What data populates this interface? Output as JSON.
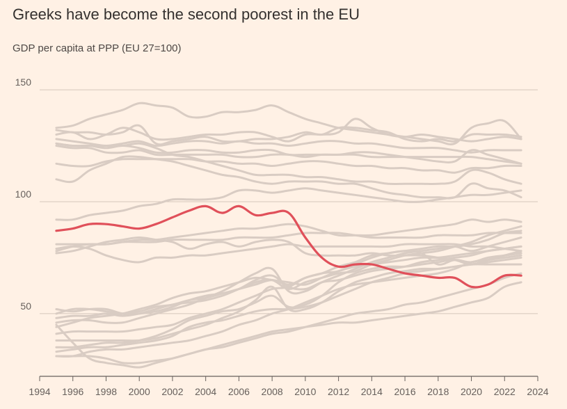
{
  "chart_data": {
    "type": "line",
    "title": "Greeks have become the second poorest in the EU",
    "subtitle": "GDP per capita at PPP (EU 27=100)",
    "xlabel": "",
    "ylabel": "",
    "xlim": [
      1994,
      2024
    ],
    "ylim": [
      22,
      155
    ],
    "x_ticks": [
      1994,
      1996,
      1998,
      2000,
      2002,
      2004,
      2006,
      2008,
      2010,
      2012,
      2014,
      2016,
      2018,
      2020,
      2022,
      2024
    ],
    "y_ticks": [
      50,
      100,
      150
    ],
    "grid": true,
    "legend": "none",
    "colors": {
      "background": "#fff1e5",
      "other_countries": "#d9ccc3",
      "highlight": "#e0505a",
      "gridline": "#d4c6bb",
      "axis": "#66605c"
    },
    "x": [
      1995,
      1996,
      1997,
      1998,
      1999,
      2000,
      2001,
      2002,
      2003,
      2004,
      2005,
      2006,
      2007,
      2008,
      2009,
      2010,
      2011,
      2012,
      2013,
      2014,
      2015,
      2016,
      2017,
      2018,
      2019,
      2020,
      2021,
      2022,
      2023
    ],
    "highlight_series": {
      "values": [
        87,
        88,
        90,
        90,
        89,
        88,
        90,
        93,
        96,
        98,
        95,
        98,
        94,
        95,
        95,
        84,
        75,
        71,
        72,
        72,
        70,
        68,
        67,
        66,
        66,
        62,
        63,
        67,
        67
      ]
    },
    "background_series": [
      {
        "values": [
          133,
          134,
          137,
          139,
          141,
          144,
          143,
          142,
          138,
          138,
          140,
          140,
          141,
          143,
          140,
          137,
          135,
          133,
          132,
          131,
          130,
          129,
          128,
          127,
          126,
          133,
          135,
          136,
          128
        ]
      },
      {
        "values": [
          132,
          131,
          131,
          130,
          131,
          134,
          126,
          127,
          128,
          129,
          127,
          127,
          128,
          128,
          129,
          131,
          130,
          133,
          133,
          132,
          131,
          128,
          127,
          128,
          127,
          130,
          130,
          130,
          129
        ]
      },
      {
        "values": [
          130,
          131,
          128,
          130,
          133,
          131,
          128,
          128,
          129,
          130,
          130,
          131,
          131,
          129,
          127,
          130,
          130,
          131,
          137,
          133,
          130,
          129,
          130,
          129,
          128,
          127,
          128,
          129,
          128
        ]
      },
      {
        "values": [
          128,
          127,
          126,
          125,
          126,
          127,
          125,
          126,
          127,
          127,
          126,
          127,
          126,
          126,
          125,
          126,
          127,
          127,
          126,
          126,
          125,
          124,
          124,
          124,
          123,
          122,
          123,
          123,
          123
        ]
      },
      {
        "values": [
          126,
          125,
          125,
          124,
          125,
          124,
          122,
          122,
          123,
          123,
          122,
          122,
          123,
          123,
          121,
          121,
          121,
          121,
          121,
          120,
          120,
          120,
          120,
          120,
          120,
          120,
          119,
          118,
          117
        ]
      },
      {
        "values": [
          125,
          124,
          124,
          122,
          122,
          123,
          121,
          121,
          121,
          121,
          121,
          120,
          120,
          121,
          121,
          120,
          121,
          121,
          122,
          122,
          121,
          120,
          119,
          118,
          118,
          123,
          121,
          119,
          117
        ]
      },
      {
        "values": [
          117,
          116,
          116,
          118,
          119,
          119,
          119,
          119,
          119,
          118,
          118,
          117,
          117,
          116,
          117,
          118,
          118,
          117,
          116,
          116,
          115,
          115,
          114,
          114,
          113,
          115,
          115,
          116,
          116
        ]
      },
      {
        "values": [
          110,
          109,
          114,
          117,
          120,
          120,
          119,
          118,
          116,
          114,
          112,
          111,
          109,
          108,
          109,
          109,
          109,
          108,
          108,
          106,
          104,
          103,
          102,
          102,
          102,
          108,
          106,
          105,
          102
        ]
      },
      {
        "values": [
          126,
          125,
          125,
          125,
          125,
          126,
          124,
          121,
          120,
          118,
          116,
          114,
          112,
          112,
          112,
          111,
          111,
          110,
          109,
          109,
          108,
          108,
          108,
          108,
          109,
          114,
          113,
          110,
          108
        ]
      },
      {
        "values": [
          92,
          92,
          94,
          95,
          96,
          98,
          99,
          101,
          101,
          101,
          102,
          105,
          105,
          104,
          105,
          106,
          105,
          104,
          103,
          102,
          101,
          100,
          100,
          101,
          102,
          103,
          103,
          104,
          105
        ]
      },
      {
        "values": [
          81,
          81,
          81,
          81,
          82,
          83,
          83,
          84,
          85,
          86,
          87,
          88,
          88,
          89,
          90,
          89,
          87,
          85,
          85,
          85,
          86,
          87,
          88,
          89,
          90,
          92,
          91,
          92,
          91
        ]
      },
      {
        "values": [
          78,
          80,
          81,
          81,
          82,
          82,
          82,
          83,
          83,
          83,
          83,
          84,
          84,
          84,
          85,
          86,
          86,
          86,
          85,
          84,
          84,
          84,
          84,
          85,
          85,
          85,
          86,
          86,
          86
        ]
      },
      {
        "values": [
          79,
          80,
          79,
          76,
          74,
          73,
          75,
          75,
          76,
          76,
          77,
          78,
          79,
          80,
          81,
          80,
          80,
          80,
          80,
          80,
          80,
          81,
          81,
          81,
          81,
          80,
          80,
          79,
          78
        ]
      },
      {
        "values": [
          77,
          78,
          80,
          82,
          83,
          84,
          83,
          82,
          79,
          81,
          82,
          80,
          82,
          83,
          82,
          77,
          76,
          76,
          76,
          77,
          76,
          76,
          76,
          75,
          74,
          72,
          74,
          76,
          77
        ]
      },
      {
        "values": [
          52,
          51,
          52,
          52,
          50,
          50,
          51,
          53,
          56,
          58,
          59,
          61,
          63,
          65,
          63,
          66,
          68,
          69,
          72,
          75,
          77,
          78,
          79,
          80,
          80,
          81,
          83,
          86,
          87
        ]
      },
      {
        "values": [
          48,
          49,
          49,
          50,
          49,
          50,
          52,
          54,
          55,
          56,
          58,
          61,
          64,
          65,
          61,
          64,
          66,
          68,
          69,
          72,
          74,
          76,
          77,
          78,
          80,
          82,
          85,
          87,
          89
        ]
      },
      {
        "values": [
          50,
          52,
          52,
          51,
          50,
          51,
          53,
          54,
          56,
          57,
          59,
          61,
          65,
          67,
          62,
          61,
          64,
          65,
          67,
          69,
          70,
          71,
          73,
          74,
          75,
          76,
          78,
          79,
          80
        ]
      },
      {
        "values": [
          46,
          47,
          47,
          46,
          46,
          48,
          50,
          52,
          54,
          57,
          60,
          64,
          68,
          70,
          60,
          60,
          64,
          67,
          70,
          73,
          75,
          77,
          78,
          79,
          80,
          78,
          80,
          82,
          84
        ]
      },
      {
        "values": [
          44,
          46,
          48,
          49,
          50,
          52,
          54,
          57,
          59,
          60,
          62,
          64,
          66,
          65,
          64,
          63,
          66,
          69,
          71,
          72,
          73,
          74,
          75,
          75,
          76,
          77,
          78,
          79,
          80
        ]
      },
      {
        "values": [
          41,
          42,
          42,
          42,
          42,
          43,
          44,
          45,
          48,
          50,
          52,
          55,
          58,
          61,
          62,
          66,
          68,
          71,
          73,
          76,
          77,
          78,
          77,
          72,
          74,
          73,
          75,
          76,
          77
        ]
      },
      {
        "values": [
          38,
          38,
          38,
          38,
          38,
          38,
          39,
          41,
          43,
          45,
          48,
          51,
          56,
          62,
          52,
          52,
          55,
          60,
          64,
          66,
          68,
          69,
          70,
          70,
          71,
          72,
          72,
          72,
          72
        ]
      },
      {
        "values": [
          35,
          35,
          36,
          37,
          37,
          38,
          40,
          43,
          47,
          49,
          51,
          52,
          55,
          58,
          53,
          54,
          58,
          64,
          68,
          70,
          71,
          71,
          72,
          73,
          74,
          72,
          74,
          76,
          78
        ]
      },
      {
        "values": [
          33,
          34,
          35,
          35,
          36,
          37,
          38,
          40,
          44,
          46,
          47,
          49,
          51,
          52,
          52,
          53,
          55,
          58,
          61,
          64,
          66,
          68,
          69,
          70,
          71,
          72,
          73,
          74,
          75
        ]
      },
      {
        "values": [
          31,
          31,
          33,
          34,
          34,
          35,
          36,
          37,
          38,
          40,
          42,
          45,
          47,
          50,
          52,
          55,
          58,
          61,
          63,
          64,
          65,
          66,
          67,
          68,
          70,
          73,
          74,
          75,
          76
        ]
      },
      {
        "values": [
          45,
          37,
          30,
          28,
          27,
          26,
          28,
          30,
          32,
          34,
          36,
          38,
          40,
          42,
          43,
          44,
          45,
          46,
          46,
          47,
          48,
          49,
          50,
          51,
          53,
          55,
          57,
          62,
          64
        ]
      },
      {
        "values": [
          31,
          31,
          31,
          30,
          28,
          28,
          29,
          30,
          32,
          34,
          35,
          37,
          39,
          41,
          42,
          44,
          46,
          48,
          50,
          51,
          52,
          54,
          55,
          57,
          59,
          61,
          63,
          66,
          68
        ]
      }
    ]
  }
}
